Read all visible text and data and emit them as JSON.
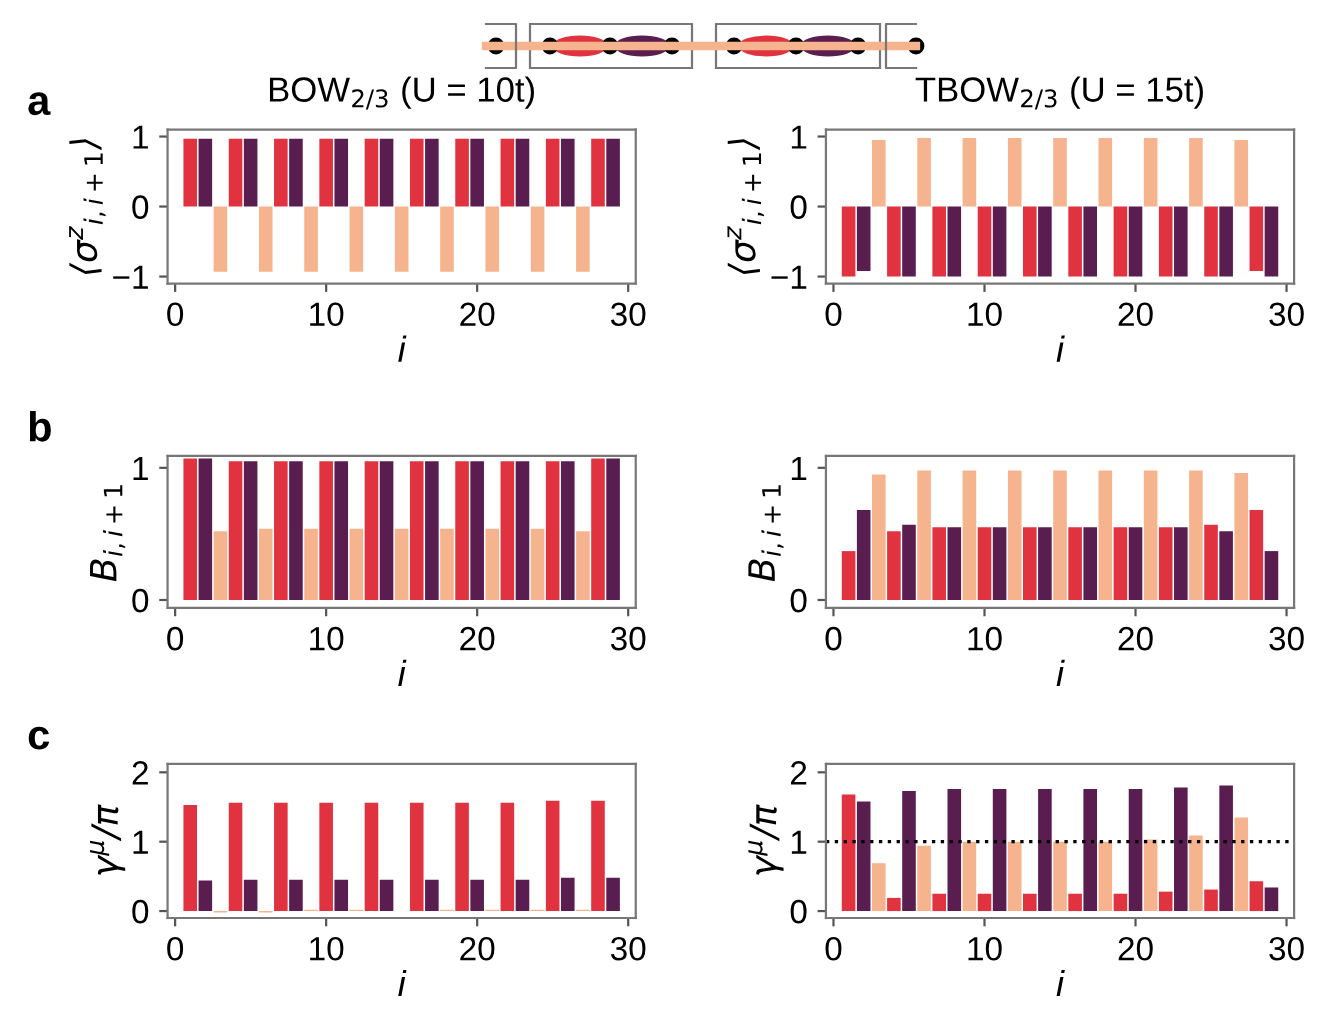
{
  "chart_data": [
    {
      "type": "bar",
      "title": "BOW$_{2/3}$ (U = 10t)",
      "annotations": [
        "a"
      ],
      "xlabel": "i",
      "ylabel": "⟨σ$^{z}$$_{i,i+1}$⟩",
      "x": [
        1,
        2,
        3,
        4,
        5,
        6,
        7,
        8,
        9,
        10,
        11,
        12,
        13,
        14,
        15,
        16,
        17,
        18,
        19,
        20,
        21,
        22,
        23,
        24,
        25,
        26,
        27,
        28,
        29
      ],
      "values": [
        0.97,
        0.97,
        -0.93,
        0.97,
        0.97,
        -0.93,
        0.97,
        0.97,
        -0.93,
        0.97,
        0.97,
        -0.93,
        0.97,
        0.97,
        -0.93,
        0.97,
        0.97,
        -0.93,
        0.97,
        0.97,
        -0.93,
        0.97,
        0.97,
        -0.93,
        0.97,
        0.97,
        -0.93,
        0.97,
        0.97
      ],
      "colors": [
        "#e0323f",
        "#5a1d4f",
        "#f5b48e",
        "#e0323f",
        "#5a1d4f",
        "#f5b48e",
        "#e0323f",
        "#5a1d4f",
        "#f5b48e",
        "#e0323f",
        "#5a1d4f",
        "#f5b48e",
        "#e0323f",
        "#5a1d4f",
        "#f5b48e",
        "#e0323f",
        "#5a1d4f",
        "#f5b48e",
        "#e0323f",
        "#5a1d4f",
        "#f5b48e",
        "#e0323f",
        "#5a1d4f",
        "#f5b48e",
        "#e0323f",
        "#5a1d4f",
        "#f5b48e",
        "#e0323f",
        "#5a1d4f"
      ],
      "xlim": [
        -0.5,
        30.5
      ],
      "xticks": [
        0,
        10,
        20,
        30
      ],
      "ylim": [
        -1.1,
        1.1
      ],
      "yticks": [
        {
          "value": -1,
          "label": "−1"
        },
        0,
        1
      ]
    },
    {
      "type": "bar",
      "title": "TBOW$_{2/3}$ (U = 15t)",
      "xlabel": "i",
      "ylabel": "⟨σ$^{z}$$_{i,i+1}$⟩",
      "x": [
        1,
        2,
        3,
        4,
        5,
        6,
        7,
        8,
        9,
        10,
        11,
        12,
        13,
        14,
        15,
        16,
        17,
        18,
        19,
        20,
        21,
        22,
        23,
        24,
        25,
        26,
        27,
        28,
        29
      ],
      "values": [
        -1,
        -0.92,
        0.95,
        -1,
        -1,
        0.98,
        -1,
        -1,
        0.98,
        -1,
        -1,
        0.98,
        -1,
        -1,
        0.98,
        -1,
        -1,
        0.98,
        -1,
        -1,
        0.98,
        -1,
        -1,
        0.98,
        -1,
        -1,
        0.95,
        -0.92,
        -1
      ],
      "colors": [
        "#e0323f",
        "#5a1d4f",
        "#f5b48e",
        "#e0323f",
        "#5a1d4f",
        "#f5b48e",
        "#e0323f",
        "#5a1d4f",
        "#f5b48e",
        "#e0323f",
        "#5a1d4f",
        "#f5b48e",
        "#e0323f",
        "#5a1d4f",
        "#f5b48e",
        "#e0323f",
        "#5a1d4f",
        "#f5b48e",
        "#e0323f",
        "#5a1d4f",
        "#f5b48e",
        "#e0323f",
        "#5a1d4f",
        "#f5b48e",
        "#e0323f",
        "#5a1d4f",
        "#f5b48e",
        "#e0323f",
        "#5a1d4f"
      ],
      "xlim": [
        -0.5,
        30.5
      ],
      "xticks": [
        0,
        10,
        20,
        30
      ],
      "ylim": [
        -1.1,
        1.1
      ],
      "yticks": [
        {
          "value": -1,
          "label": "−1"
        },
        0,
        1
      ]
    },
    {
      "type": "bar",
      "annotations": [
        "b"
      ],
      "xlabel": "i",
      "ylabel": "B$_{i,i+1}$",
      "x": [
        1,
        2,
        3,
        4,
        5,
        6,
        7,
        8,
        9,
        10,
        11,
        12,
        13,
        14,
        15,
        16,
        17,
        18,
        19,
        20,
        21,
        22,
        23,
        24,
        25,
        26,
        27,
        28,
        29
      ],
      "values": [
        1.07,
        1.07,
        0.52,
        1.05,
        1.05,
        0.54,
        1.05,
        1.05,
        0.54,
        1.05,
        1.05,
        0.54,
        1.05,
        1.05,
        0.54,
        1.05,
        1.05,
        0.54,
        1.05,
        1.05,
        0.54,
        1.05,
        1.05,
        0.54,
        1.05,
        1.05,
        0.52,
        1.07,
        1.07
      ],
      "colors": [
        "#e0323f",
        "#5a1d4f",
        "#f5b48e",
        "#e0323f",
        "#5a1d4f",
        "#f5b48e",
        "#e0323f",
        "#5a1d4f",
        "#f5b48e",
        "#e0323f",
        "#5a1d4f",
        "#f5b48e",
        "#e0323f",
        "#5a1d4f",
        "#f5b48e",
        "#e0323f",
        "#5a1d4f",
        "#f5b48e",
        "#e0323f",
        "#5a1d4f",
        "#f5b48e",
        "#e0323f",
        "#5a1d4f",
        "#f5b48e",
        "#e0323f",
        "#5a1d4f",
        "#f5b48e",
        "#e0323f",
        "#5a1d4f"
      ],
      "xlim": [
        -0.5,
        30.5
      ],
      "xticks": [
        0,
        10,
        20,
        30
      ],
      "ylim": [
        -0.06,
        1.09
      ],
      "yticks": [
        0,
        1
      ]
    },
    {
      "type": "bar",
      "xlabel": "i",
      "ylabel": "B$_{i,i+1}$",
      "x": [
        1,
        2,
        3,
        4,
        5,
        6,
        7,
        8,
        9,
        10,
        11,
        12,
        13,
        14,
        15,
        16,
        17,
        18,
        19,
        20,
        21,
        22,
        23,
        24,
        25,
        26,
        27,
        28,
        29
      ],
      "values": [
        0.37,
        0.68,
        0.95,
        0.52,
        0.57,
        0.98,
        0.55,
        0.55,
        0.98,
        0.55,
        0.55,
        0.98,
        0.55,
        0.55,
        0.98,
        0.55,
        0.55,
        0.98,
        0.55,
        0.55,
        0.98,
        0.55,
        0.55,
        0.98,
        0.57,
        0.52,
        0.96,
        0.68,
        0.37
      ],
      "colors": [
        "#e0323f",
        "#5a1d4f",
        "#f5b48e",
        "#e0323f",
        "#5a1d4f",
        "#f5b48e",
        "#e0323f",
        "#5a1d4f",
        "#f5b48e",
        "#e0323f",
        "#5a1d4f",
        "#f5b48e",
        "#e0323f",
        "#5a1d4f",
        "#f5b48e",
        "#e0323f",
        "#5a1d4f",
        "#f5b48e",
        "#e0323f",
        "#5a1d4f",
        "#f5b48e",
        "#e0323f",
        "#5a1d4f",
        "#f5b48e",
        "#e0323f",
        "#5a1d4f",
        "#f5b48e",
        "#e0323f",
        "#5a1d4f"
      ],
      "xlim": [
        -0.5,
        30.5
      ],
      "xticks": [
        0,
        10,
        20,
        30
      ],
      "ylim": [
        -0.06,
        1.09
      ],
      "yticks": [
        0,
        1
      ]
    },
    {
      "type": "bar",
      "annotations": [
        "c"
      ],
      "xlabel": "i",
      "ylabel": "γ$^{μ}$/π",
      "x": [
        1,
        2,
        3,
        4,
        5,
        6,
        7,
        8,
        9,
        10,
        11,
        12,
        13,
        14,
        15,
        16,
        17,
        18,
        19,
        20,
        21,
        22,
        23,
        24,
        25,
        26,
        27,
        28,
        29
      ],
      "values": [
        1.53,
        0.44,
        -0.02,
        1.56,
        0.45,
        -0.02,
        1.56,
        0.45,
        0.02,
        1.56,
        0.45,
        0.02,
        1.56,
        0.45,
        0,
        1.56,
        0.45,
        0.02,
        1.56,
        0.45,
        0.02,
        1.56,
        0.45,
        0.02,
        1.59,
        0.48,
        0.02,
        1.59,
        0.48
      ],
      "colors": [
        "#e0323f",
        "#5a1d4f",
        "#f5b48e",
        "#e0323f",
        "#5a1d4f",
        "#f5b48e",
        "#e0323f",
        "#5a1d4f",
        "#f5b48e",
        "#e0323f",
        "#5a1d4f",
        "#f5b48e",
        "#e0323f",
        "#5a1d4f",
        "#f5b48e",
        "#e0323f",
        "#5a1d4f",
        "#f5b48e",
        "#e0323f",
        "#5a1d4f",
        "#f5b48e",
        "#e0323f",
        "#5a1d4f",
        "#f5b48e",
        "#e0323f",
        "#5a1d4f",
        "#f5b48e",
        "#e0323f",
        "#5a1d4f"
      ],
      "xlim": [
        -0.5,
        30.5
      ],
      "xticks": [
        0,
        10,
        20,
        30
      ],
      "ylim": [
        -0.1,
        2.12
      ],
      "yticks": [
        0,
        1,
        2
      ]
    },
    {
      "type": "bar",
      "xlabel": "i",
      "ylabel": "γ$^{μ}$/π",
      "x": [
        1,
        2,
        3,
        4,
        5,
        6,
        7,
        8,
        9,
        10,
        11,
        12,
        13,
        14,
        15,
        16,
        17,
        18,
        19,
        20,
        21,
        22,
        23,
        24,
        25,
        26,
        27,
        28,
        29
      ],
      "values": [
        1.68,
        1.58,
        0.69,
        0.19,
        1.73,
        0.94,
        0.25,
        1.76,
        1.0,
        0.25,
        1.76,
        1.0,
        0.25,
        1.76,
        1.0,
        0.25,
        1.76,
        1.0,
        0.25,
        1.76,
        1.03,
        0.28,
        1.78,
        1.09,
        0.31,
        1.81,
        1.35,
        0.43,
        0.34
      ],
      "colors": [
        "#e0323f",
        "#5a1d4f",
        "#f5b48e",
        "#e0323f",
        "#5a1d4f",
        "#f5b48e",
        "#e0323f",
        "#5a1d4f",
        "#f5b48e",
        "#e0323f",
        "#5a1d4f",
        "#f5b48e",
        "#e0323f",
        "#5a1d4f",
        "#f5b48e",
        "#e0323f",
        "#5a1d4f",
        "#f5b48e",
        "#e0323f",
        "#5a1d4f",
        "#f5b48e",
        "#e0323f",
        "#5a1d4f",
        "#f5b48e",
        "#e0323f",
        "#5a1d4f",
        "#f5b48e",
        "#e0323f",
        "#5a1d4f"
      ],
      "xlim": [
        -0.5,
        30.5
      ],
      "xticks": [
        0,
        10,
        20,
        30
      ],
      "ylim": [
        -0.1,
        2.12
      ],
      "yticks": [
        0,
        1,
        2
      ],
      "ref_lines": [
        {
          "axis": "y",
          "value": 1,
          "color": "#000000",
          "line_style": "dotted"
        }
      ]
    }
  ]
}
